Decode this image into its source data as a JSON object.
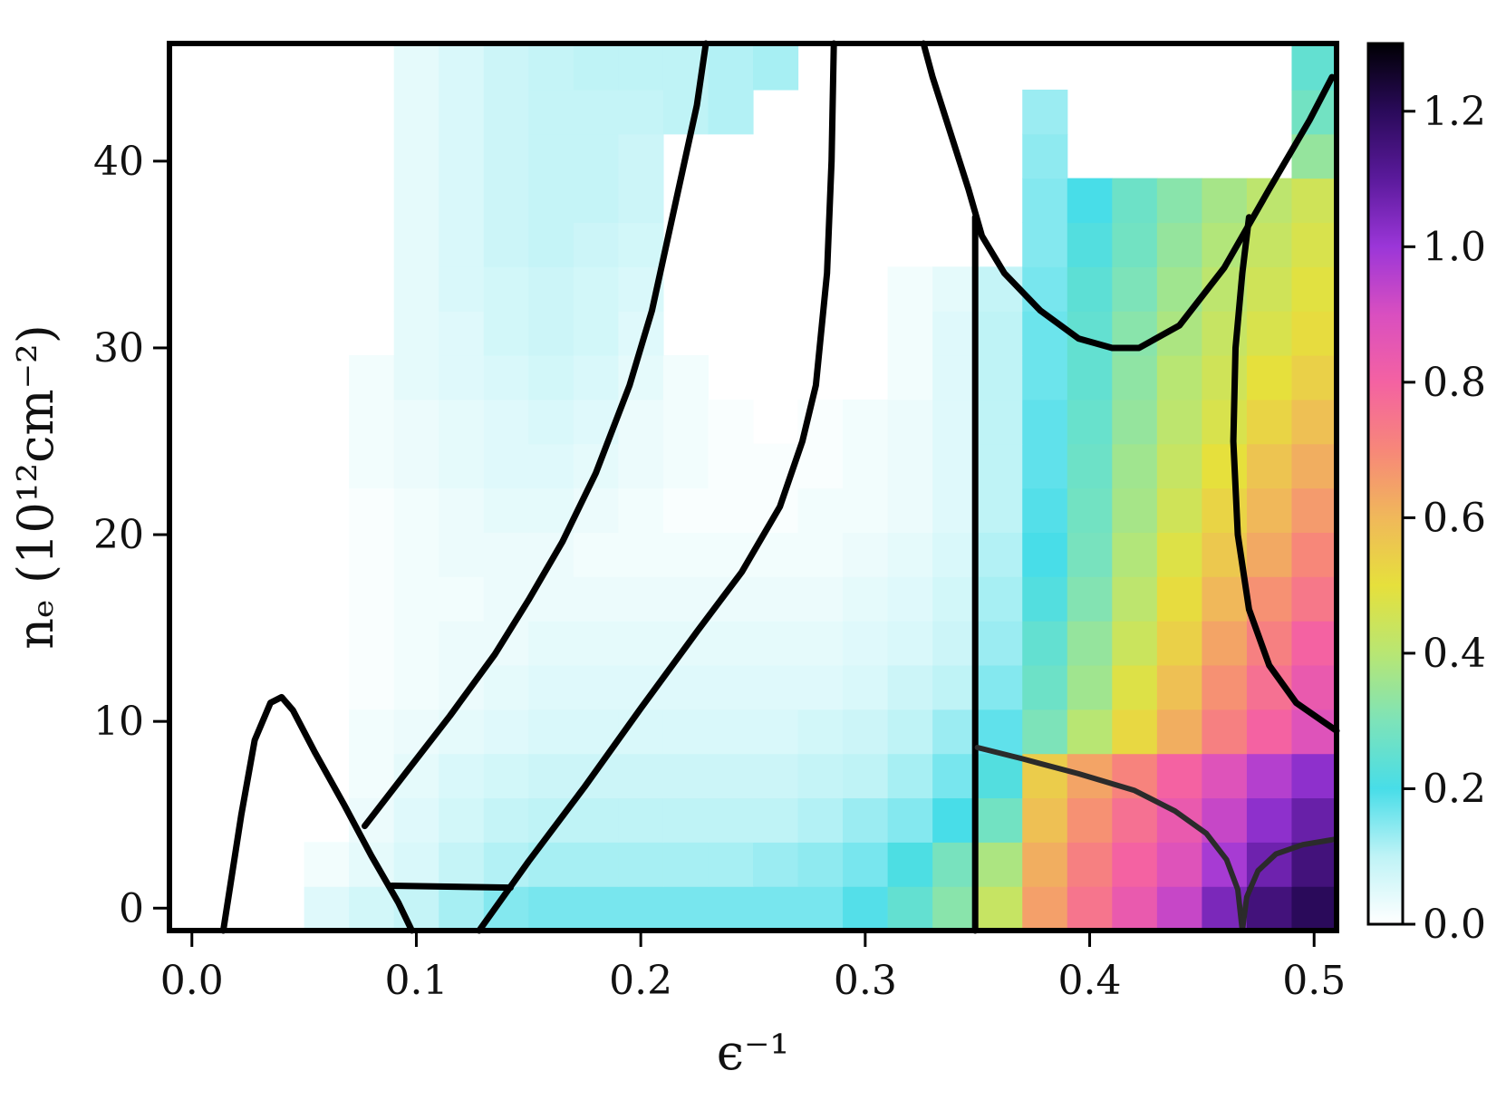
{
  "chart_data": {
    "type": "heatmap",
    "title": "",
    "xlabel": "ϵ⁻¹",
    "ylabel": "nₑ (10¹²cm⁻²)",
    "xlim": [
      -0.01,
      0.51
    ],
    "ylim": [
      -1.2,
      46.3
    ],
    "xticks": [
      0.0,
      0.1,
      0.2,
      0.3,
      0.4,
      0.5
    ],
    "xtick_labels": [
      "0.0",
      "0.1",
      "0.2",
      "0.3",
      "0.4",
      "0.5"
    ],
    "yticks": [
      0,
      10,
      20,
      30,
      40
    ],
    "ytick_labels": [
      "0",
      "10",
      "20",
      "30",
      "40"
    ],
    "colorbar": {
      "min": 0.0,
      "max": 1.3,
      "ticks": [
        0.0,
        0.2,
        0.4,
        0.6,
        0.8,
        1.0,
        1.2
      ],
      "tick_labels": [
        "0.0",
        "0.2",
        "0.4",
        "0.6",
        "0.8",
        "1.0",
        "1.2"
      ]
    },
    "colors": [
      "#ffffff",
      "#bff3f6",
      "#48dde8",
      "#7de3b9",
      "#b8e673",
      "#e6e03c",
      "#f0b85a",
      "#f78779",
      "#f462a2",
      "#d94fc0",
      "#9b36d8",
      "#5b1a9c",
      "#2a0a5a",
      "#000004"
    ],
    "grid": false,
    "heatmap": {
      "x_start": 0.05,
      "x_step": 0.02,
      "y_start": -1.2,
      "y_step": 2.37,
      "rows": [
        [
          0.05,
          0.07,
          0.09,
          0.12,
          0.15,
          0.16,
          0.16,
          0.16,
          0.16,
          0.16,
          0.16,
          0.16,
          0.19,
          0.25,
          0.32,
          0.43,
          0.65,
          0.75,
          0.84,
          0.93,
          1.05,
          1.15,
          1.2,
          1.3
        ],
        [
          0.02,
          0.04,
          0.06,
          0.09,
          0.11,
          0.12,
          0.12,
          0.12,
          0.12,
          0.12,
          0.13,
          0.14,
          0.16,
          0.21,
          0.29,
          0.38,
          0.62,
          0.72,
          0.8,
          0.88,
          0.98,
          1.07,
          1.15,
          1.2
        ],
        [
          0.0,
          0.03,
          0.05,
          0.07,
          0.09,
          0.1,
          0.1,
          0.1,
          0.1,
          0.1,
          0.1,
          0.11,
          0.13,
          0.15,
          0.2,
          0.28,
          0.58,
          0.68,
          0.76,
          0.84,
          0.93,
          1.02,
          1.08,
          1.13
        ],
        [
          0.0,
          0.02,
          0.04,
          0.06,
          0.07,
          0.08,
          0.08,
          0.08,
          0.08,
          0.08,
          0.08,
          0.09,
          0.1,
          0.12,
          0.16,
          0.22,
          0.55,
          0.64,
          0.71,
          0.8,
          0.88,
          0.96,
          1.02,
          1.08
        ],
        [
          0.0,
          0.02,
          0.03,
          0.04,
          0.05,
          0.06,
          0.06,
          0.06,
          0.06,
          0.06,
          0.06,
          0.07,
          0.08,
          0.1,
          0.13,
          0.18,
          0.3,
          0.4,
          0.52,
          0.62,
          0.72,
          0.8,
          0.88,
          0.95
        ],
        [
          0.0,
          0.01,
          0.02,
          0.03,
          0.04,
          0.05,
          0.05,
          0.05,
          0.05,
          0.05,
          0.05,
          0.05,
          0.06,
          0.08,
          0.1,
          0.15,
          0.27,
          0.36,
          0.48,
          0.58,
          0.68,
          0.76,
          0.84,
          0.9
        ],
        [
          0.0,
          0.01,
          0.02,
          0.03,
          0.03,
          0.04,
          0.04,
          0.04,
          0.04,
          0.04,
          0.04,
          0.04,
          0.05,
          0.06,
          0.08,
          0.13,
          0.25,
          0.34,
          0.44,
          0.54,
          0.64,
          0.72,
          0.8,
          0.86
        ],
        [
          0.0,
          0.01,
          0.02,
          0.02,
          0.03,
          0.03,
          0.03,
          0.03,
          0.03,
          0.03,
          0.03,
          0.03,
          0.04,
          0.05,
          0.07,
          0.12,
          0.22,
          0.31,
          0.41,
          0.51,
          0.6,
          0.68,
          0.74,
          0.79
        ],
        [
          0.0,
          0.01,
          0.02,
          0.03,
          0.03,
          0.03,
          0.02,
          0.02,
          0.02,
          0.02,
          0.02,
          0.02,
          0.03,
          0.04,
          0.06,
          0.11,
          0.2,
          0.29,
          0.39,
          0.48,
          0.56,
          0.63,
          0.7,
          0.74
        ],
        [
          0.0,
          0.01,
          0.02,
          0.03,
          0.04,
          0.04,
          0.03,
          0.02,
          0.01,
          0.01,
          0.01,
          0.02,
          0.02,
          0.03,
          0.05,
          0.1,
          0.19,
          0.28,
          0.37,
          0.45,
          0.53,
          0.6,
          0.66,
          0.7
        ],
        [
          0.0,
          0.02,
          0.03,
          0.04,
          0.05,
          0.05,
          0.04,
          0.03,
          0.02,
          0.01,
          0.01,
          0.01,
          0.02,
          0.03,
          0.05,
          0.1,
          0.18,
          0.27,
          0.36,
          0.43,
          0.5,
          0.57,
          0.62,
          0.66
        ],
        [
          0.0,
          0.02,
          0.03,
          0.04,
          0.05,
          0.06,
          0.05,
          0.03,
          0.02,
          0.01,
          0.0,
          0.01,
          0.02,
          0.03,
          0.05,
          0.1,
          0.18,
          0.26,
          0.34,
          0.41,
          0.47,
          0.53,
          0.58,
          0.62
        ],
        [
          0.0,
          0.02,
          0.04,
          0.05,
          0.06,
          0.07,
          0.06,
          0.04,
          0.02,
          0.0,
          0.0,
          0.0,
          0.0,
          0.02,
          0.05,
          0.1,
          0.17,
          0.25,
          0.33,
          0.4,
          0.45,
          0.5,
          0.54,
          0.58
        ],
        [
          0.0,
          0.0,
          0.04,
          0.05,
          0.07,
          0.08,
          0.07,
          0.05,
          0.0,
          0.0,
          0.0,
          0.0,
          0.0,
          0.02,
          0.05,
          0.1,
          0.17,
          0.25,
          0.32,
          0.38,
          0.43,
          0.47,
          0.51,
          0.55
        ],
        [
          0.0,
          0.0,
          0.04,
          0.06,
          0.07,
          0.08,
          0.07,
          0.06,
          0.0,
          0.0,
          0.0,
          0.0,
          0.0,
          0.02,
          0.04,
          0.09,
          0.16,
          0.24,
          0.3,
          0.36,
          0.41,
          0.45,
          0.49,
          0.52
        ],
        [
          0.0,
          0.0,
          0.04,
          0.06,
          0.08,
          0.09,
          0.08,
          0.07,
          0.0,
          0.0,
          0.0,
          0.0,
          0.0,
          0.0,
          0.0,
          0.0,
          0.15,
          0.22,
          0.28,
          0.34,
          0.39,
          0.43,
          0.47,
          0.5
        ],
        [
          0.0,
          0.0,
          0.04,
          0.06,
          0.08,
          0.09,
          0.09,
          0.08,
          0.0,
          0.0,
          0.0,
          0.0,
          0.0,
          0.0,
          0.0,
          0.0,
          0.15,
          0.2,
          0.27,
          0.32,
          0.37,
          0.41,
          0.45,
          0.48
        ],
        [
          0.0,
          0.0,
          0.04,
          0.06,
          0.08,
          0.09,
          0.09,
          0.08,
          0.0,
          0.0,
          0.0,
          0.0,
          0.0,
          0.0,
          0.0,
          0.0,
          0.14,
          0.0,
          0.0,
          0.0,
          0.0,
          0.0,
          0.34,
          0.38
        ],
        [
          0.0,
          0.0,
          0.04,
          0.06,
          0.08,
          0.09,
          0.09,
          0.09,
          0.1,
          0.11,
          0.0,
          0.0,
          0.0,
          0.0,
          0.0,
          0.0,
          0.13,
          0.0,
          0.0,
          0.0,
          0.0,
          0.0,
          0.28,
          0.3
        ],
        [
          0.0,
          0.0,
          0.04,
          0.06,
          0.08,
          0.09,
          0.1,
          0.1,
          0.1,
          0.11,
          0.12,
          0.0,
          0.0,
          0.0,
          0.0,
          0.0,
          0.0,
          0.0,
          0.0,
          0.0,
          0.0,
          0.0,
          0.25,
          0.27
        ],
        [
          0.0,
          0.0,
          0.0,
          0.0,
          0.0,
          0.1,
          0.1,
          0.11,
          0.11,
          0.11,
          0.12,
          0.13,
          0.0,
          0.0,
          0.0,
          0.0,
          0.0,
          0.0,
          0.0,
          0.0,
          0.0,
          0.0,
          0.0,
          0.22
        ]
      ]
    },
    "boundary_curves": [
      {
        "points": [
          [
            0.014,
            -1.2
          ],
          [
            0.022,
            5.0
          ],
          [
            0.028,
            9.0
          ],
          [
            0.035,
            11.0
          ],
          [
            0.04,
            11.3
          ],
          [
            0.045,
            10.6
          ],
          [
            0.055,
            8.3
          ],
          [
            0.068,
            5.5
          ],
          [
            0.08,
            2.8
          ],
          [
            0.092,
            0.3
          ],
          [
            0.098,
            -1.2
          ]
        ]
      },
      {
        "points": [
          [
            0.077,
            4.4
          ],
          [
            0.095,
            7.2
          ],
          [
            0.115,
            10.3
          ],
          [
            0.135,
            13.6
          ],
          [
            0.15,
            16.5
          ],
          [
            0.165,
            19.6
          ],
          [
            0.18,
            23.3
          ],
          [
            0.195,
            28.0
          ],
          [
            0.205,
            32.0
          ],
          [
            0.215,
            37.5
          ],
          [
            0.225,
            43.0
          ],
          [
            0.229,
            46.3
          ]
        ]
      },
      {
        "points": [
          [
            0.089,
            1.2
          ],
          [
            0.142,
            1.1
          ]
        ]
      },
      {
        "points": [
          [
            0.128,
            -1.2
          ],
          [
            0.15,
            2.5
          ],
          [
            0.175,
            6.5
          ],
          [
            0.2,
            10.7
          ],
          [
            0.225,
            14.8
          ],
          [
            0.245,
            18.0
          ],
          [
            0.262,
            21.5
          ],
          [
            0.272,
            25.0
          ],
          [
            0.278,
            28.0
          ],
          [
            0.283,
            34.0
          ],
          [
            0.285,
            40.0
          ],
          [
            0.286,
            46.3
          ]
        ]
      },
      {
        "points": [
          [
            0.326,
            46.3
          ],
          [
            0.33,
            44.5
          ],
          [
            0.338,
            41.5
          ],
          [
            0.346,
            38.5
          ],
          [
            0.352,
            36.0
          ],
          [
            0.362,
            34.0
          ],
          [
            0.378,
            32.0
          ],
          [
            0.395,
            30.5
          ],
          [
            0.41,
            30.0
          ],
          [
            0.422,
            30.0
          ],
          [
            0.44,
            31.2
          ],
          [
            0.46,
            34.3
          ],
          [
            0.48,
            38.5
          ],
          [
            0.498,
            42.2
          ],
          [
            0.508,
            44.5
          ]
        ]
      },
      {
        "points": [
          [
            0.349,
            -1.2
          ],
          [
            0.349,
            37.0
          ]
        ]
      },
      {
        "points": [
          [
            0.471,
            37.0
          ],
          [
            0.468,
            34.0
          ],
          [
            0.465,
            30.0
          ],
          [
            0.464,
            25.0
          ],
          [
            0.466,
            20.0
          ],
          [
            0.471,
            16.0
          ],
          [
            0.48,
            13.0
          ],
          [
            0.492,
            11.0
          ],
          [
            0.504,
            10.0
          ],
          [
            0.51,
            9.5
          ]
        ]
      }
    ],
    "gray_curves": [
      {
        "points": [
          [
            0.35,
            8.6
          ],
          [
            0.37,
            8.0
          ],
          [
            0.395,
            7.2
          ],
          [
            0.42,
            6.3
          ],
          [
            0.438,
            5.2
          ],
          [
            0.452,
            4.0
          ],
          [
            0.461,
            2.6
          ],
          [
            0.466,
            1.0
          ],
          [
            0.468,
            -1.2
          ]
        ]
      },
      {
        "points": [
          [
            0.468,
            -1.2
          ],
          [
            0.47,
            0.6
          ],
          [
            0.475,
            2.0
          ],
          [
            0.483,
            2.9
          ],
          [
            0.495,
            3.4
          ],
          [
            0.51,
            3.7
          ]
        ]
      }
    ]
  }
}
